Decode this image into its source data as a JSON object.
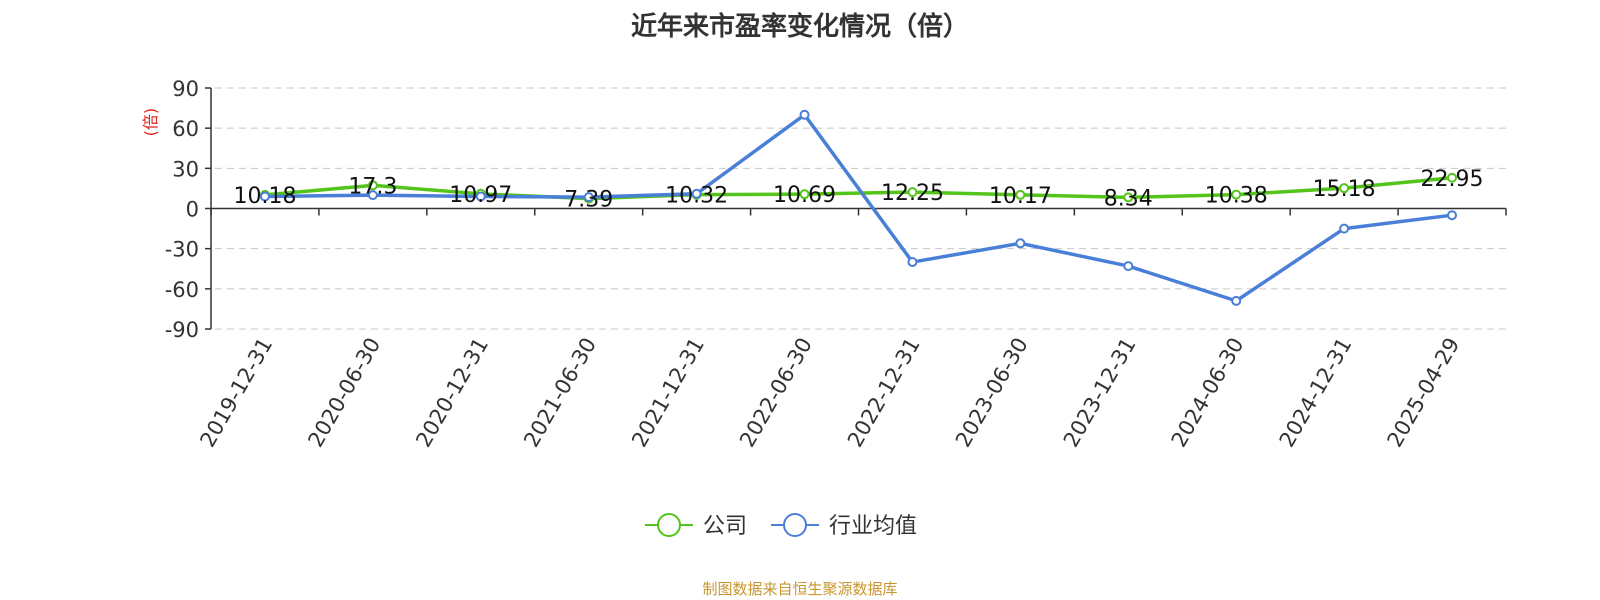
{
  "chart_data": {
    "type": "line",
    "title": "近年来市盈率变化情况（倍）",
    "ylabel": "(倍)",
    "ylim": [
      -90,
      90
    ],
    "yticks": [
      90,
      60,
      30,
      0,
      -30,
      -60,
      -90
    ],
    "categories": [
      "2019-12-31",
      "2020-06-30",
      "2020-12-31",
      "2021-06-30",
      "2021-12-31",
      "2022-06-30",
      "2022-12-31",
      "2023-06-30",
      "2023-12-31",
      "2024-06-30",
      "2024-12-31",
      "2025-04-29"
    ],
    "series": [
      {
        "name": "公司",
        "color": "#52c41a",
        "values": [
          10.18,
          17.3,
          10.97,
          7.39,
          10.32,
          10.69,
          12.25,
          10.17,
          8.34,
          10.38,
          15.18,
          22.95
        ],
        "labels": [
          "10.18",
          "17.3",
          "10.97",
          "7.39",
          "10.32",
          "10.69",
          "12.25",
          "10.17",
          "8.34",
          "10.38",
          "15.18",
          "22.95"
        ]
      },
      {
        "name": "行业均值",
        "color": "#4a7fd8",
        "values": [
          9,
          10,
          9,
          8.5,
          11,
          70,
          -40,
          -26,
          -43,
          -69,
          -15,
          -5
        ]
      }
    ],
    "grid": true,
    "legend_position": "bottom-center"
  },
  "footer": {
    "source": "制图数据来自恒生聚源数据库"
  }
}
